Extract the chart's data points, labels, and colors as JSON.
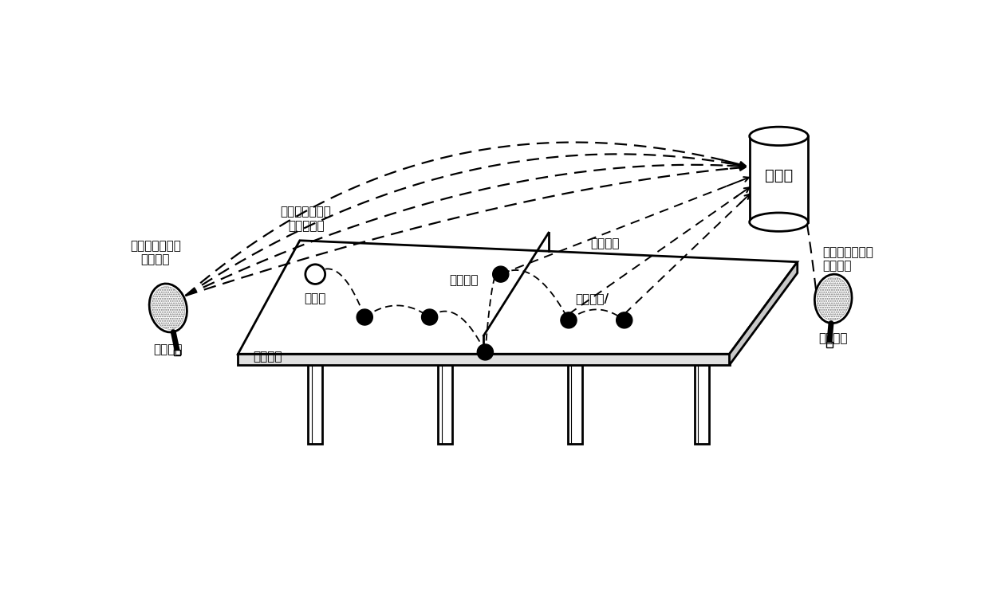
{
  "bg_color": "#ffffff",
  "label_left_paddle": "乒乓球拍",
  "label_right_paddle": "乒乓球拍",
  "label_ball": "乒乓球",
  "label_table": "乒乓球台",
  "label_net": "乒乓球网",
  "label_server": "服务器",
  "label_left_data1": "触感数据及陀螺\n力矩数据",
  "label_left_data2": "陀螺力矩数据及\n加速度数据",
  "label_touch_data1": "触感数据",
  "label_touch_data2": "触感数据/",
  "label_right_data": "触感数据及陀螺\n力矩数据",
  "font_size": 11,
  "font_size_server": 14,
  "lw": 2.0
}
